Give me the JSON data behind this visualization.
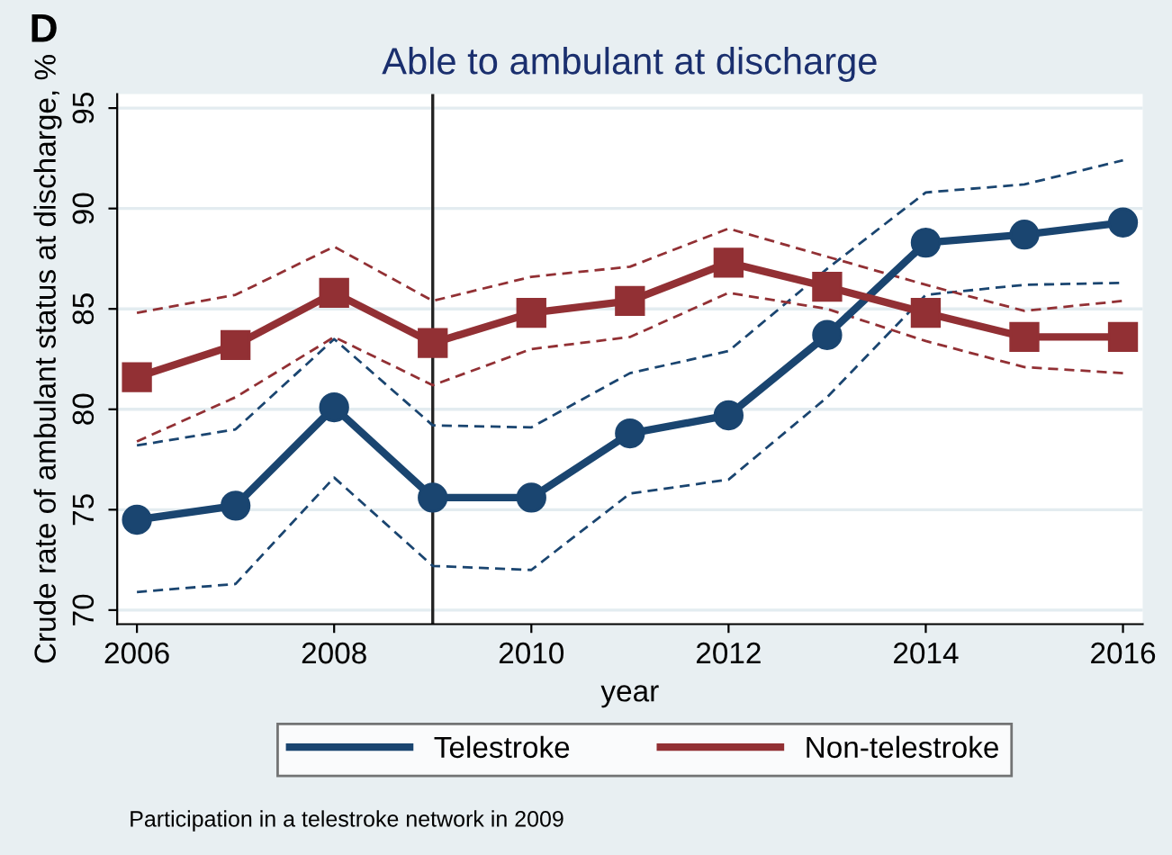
{
  "chart_data": {
    "type": "line",
    "title": "Able to ambulant at discharge",
    "xlabel": "year",
    "ylabel": "Crude rate of ambulant status at discharge, %",
    "x": [
      2006,
      2007,
      2008,
      2009,
      2010,
      2011,
      2012,
      2013,
      2014,
      2015,
      2016
    ],
    "series": [
      {
        "color": "#1a4570",
        "marker": "none",
        "line_style": "dashed",
        "values": [
          70.9,
          71.3,
          76.6,
          72.2,
          72.0,
          75.8,
          76.5,
          80.6,
          85.7,
          86.2,
          86.3
        ]
      },
      {
        "color": "#1a4570",
        "marker": "none",
        "line_style": "dashed",
        "values": [
          78.2,
          79.0,
          83.5,
          79.2,
          79.1,
          81.8,
          82.9,
          87.0,
          90.8,
          91.2,
          92.4
        ]
      },
      {
        "color": "#923034",
        "marker": "none",
        "line_style": "dashed",
        "values": [
          78.4,
          80.6,
          83.6,
          81.2,
          83.0,
          83.6,
          85.8,
          85.0,
          83.4,
          82.1,
          81.8
        ]
      },
      {
        "color": "#923034",
        "marker": "none",
        "line_style": "dashed",
        "values": [
          84.8,
          85.7,
          88.1,
          85.4,
          86.6,
          87.1,
          89.0,
          87.6,
          86.2,
          84.9,
          85.4
        ]
      },
      {
        "name": "Telestroke",
        "color": "#1a4570",
        "marker": "circle",
        "values": [
          74.5,
          75.2,
          80.1,
          75.6,
          75.6,
          78.8,
          79.7,
          83.7,
          88.3,
          88.7,
          89.3
        ]
      },
      {
        "name": "Non-telestroke",
        "color": "#923034",
        "marker": "square",
        "values": [
          81.6,
          83.2,
          85.8,
          83.3,
          84.8,
          85.4,
          87.3,
          86.1,
          84.8,
          83.6,
          83.6
        ]
      }
    ],
    "xlim": [
      2005.8,
      2016.2
    ],
    "xticks": [
      2006,
      2008,
      2010,
      2012,
      2014,
      2016
    ],
    "ylim": [
      69.3,
      95.7
    ],
    "yticks": [
      70,
      75,
      80,
      85,
      90,
      95
    ],
    "ref_lines": [
      {
        "axis": "x",
        "value": 2009,
        "color": "#222222"
      }
    ],
    "grid": "y",
    "legend": "bottom",
    "line_style": "solid",
    "annotations": [
      "D",
      "Participation in a telestroke network in 2009"
    ]
  }
}
